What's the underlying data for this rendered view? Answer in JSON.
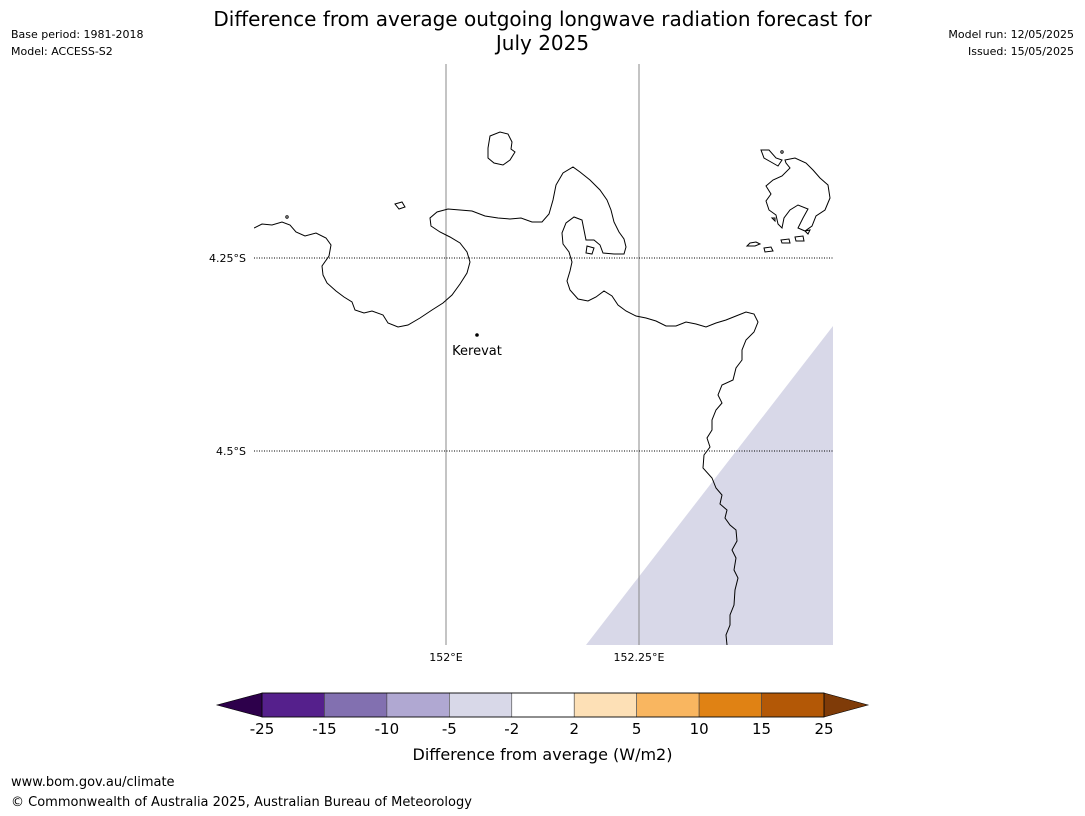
{
  "title": {
    "line1": "Difference from average outgoing longwave radiation forecast for",
    "line2": "July 2025"
  },
  "meta_left": {
    "base_period": "Base period: 1981-2018",
    "model": "Model: ACCESS-S2"
  },
  "meta_right": {
    "model_run": "Model run: 12/05/2025",
    "issued": "Issued: 15/05/2025"
  },
  "map": {
    "lat_labels": [
      "4.25°S",
      "4.5°S"
    ],
    "lon_labels": [
      "152°E",
      "152.25°E"
    ],
    "place": "Kerevat",
    "shaded_anomaly_bin": "-5 to -2",
    "shaded_color": "#d8d8e8",
    "coastline_color": "#000000"
  },
  "colorbar": {
    "title": "Difference from average (W/m2)",
    "ticks": [
      "-25",
      "-15",
      "-10",
      "-5",
      "-2",
      "2",
      "5",
      "10",
      "15",
      "25"
    ],
    "colors": [
      "#55208c",
      "#8270b0",
      "#b0a8d2",
      "#d8d8e8",
      "#ffffff",
      "#fde0b6",
      "#f9b660",
      "#e08214",
      "#b35806"
    ],
    "extend_low_color": "#2d004b",
    "extend_high_color": "#7f3b08"
  },
  "footer": {
    "url": "www.bom.gov.au/climate",
    "copyright": "© Commonwealth of Australia 2025, Australian Bureau of Meteorology"
  }
}
